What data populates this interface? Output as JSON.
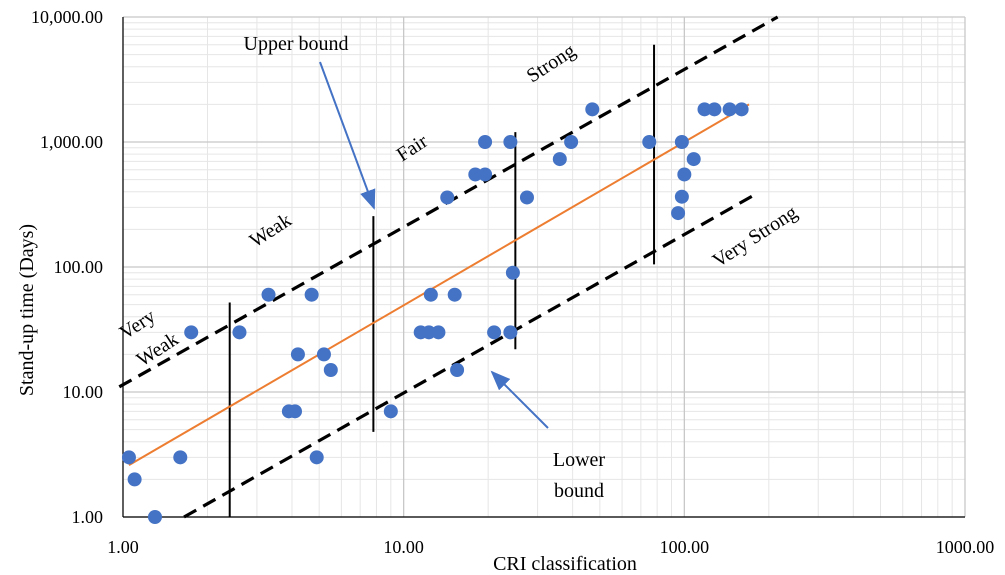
{
  "chart_data": {
    "type": "scatter",
    "xlabel": "CRI classification",
    "ylabel": "Stand-up time (Days)",
    "xscale": "log",
    "yscale": "log",
    "xlim": [
      1,
      1000
    ],
    "ylim": [
      1,
      10000
    ],
    "grid": true,
    "x_ticks": [
      1,
      10,
      100,
      1000
    ],
    "x_tick_labels": [
      "1.00",
      "10.00",
      "100.00",
      "1000.00"
    ],
    "y_ticks": [
      1,
      10,
      100,
      1000,
      10000
    ],
    "y_tick_labels": [
      "1.00",
      "10.00",
      "100.00",
      "1,000.00",
      "10,000.00"
    ],
    "points": [
      [
        1.05,
        3
      ],
      [
        1.1,
        2
      ],
      [
        1.3,
        1
      ],
      [
        1.6,
        3
      ],
      [
        1.75,
        30
      ],
      [
        2.6,
        30
      ],
      [
        3.3,
        60
      ],
      [
        3.9,
        7
      ],
      [
        4.1,
        7
      ],
      [
        4.2,
        20
      ],
      [
        4.7,
        60
      ],
      [
        4.9,
        3
      ],
      [
        5.2,
        20
      ],
      [
        5.5,
        15
      ],
      [
        9.0,
        7
      ],
      [
        11.5,
        30
      ],
      [
        12.3,
        30
      ],
      [
        12.5,
        60
      ],
      [
        13.3,
        30
      ],
      [
        14.3,
        360
      ],
      [
        15.2,
        60
      ],
      [
        15.5,
        15
      ],
      [
        18.0,
        550
      ],
      [
        19.5,
        550
      ],
      [
        19.5,
        1000
      ],
      [
        21.0,
        30
      ],
      [
        24.0,
        30
      ],
      [
        24.0,
        1000
      ],
      [
        24.5,
        90
      ],
      [
        27.5,
        360
      ],
      [
        36.0,
        730
      ],
      [
        39.5,
        1000
      ],
      [
        47.0,
        1825
      ],
      [
        75.0,
        1000
      ],
      [
        95.0,
        270
      ],
      [
        98.0,
        1000
      ],
      [
        98.0,
        365
      ],
      [
        100.0,
        550
      ],
      [
        108.0,
        730
      ],
      [
        118.0,
        1825
      ],
      [
        128.0,
        1825
      ],
      [
        145.0,
        1825
      ],
      [
        160.0,
        1825
      ]
    ],
    "trendline": {
      "color": "#ED7D31",
      "x": [
        1.05,
        170
      ],
      "y": [
        2.6,
        2000
      ]
    },
    "upper_bound": {
      "x": [
        0.97,
        215
      ],
      "y": [
        11,
        10000
      ]
    },
    "lower_bound": {
      "x": [
        1.65,
        175
      ],
      "y": [
        1,
        370
      ]
    },
    "dividers": [
      {
        "x": 2.4,
        "y_low": 1,
        "y_high": 52
      },
      {
        "x": 7.8,
        "y_low": 4.8,
        "y_high": 255
      },
      {
        "x": 25.0,
        "y_low": 22,
        "y_high": 1200
      },
      {
        "x": 78.0,
        "y_low": 105,
        "y_high": 6000
      }
    ],
    "point_color": "#4472C4",
    "annotation_arrow_color": "#4472C4",
    "band_labels": [
      "Very",
      "Weak",
      "Weak",
      "Fair",
      "Strong",
      "Very Strong"
    ],
    "annotations": {
      "upper": "Upper bound",
      "lower_line1": "Lower",
      "lower_line2": "bound"
    }
  }
}
